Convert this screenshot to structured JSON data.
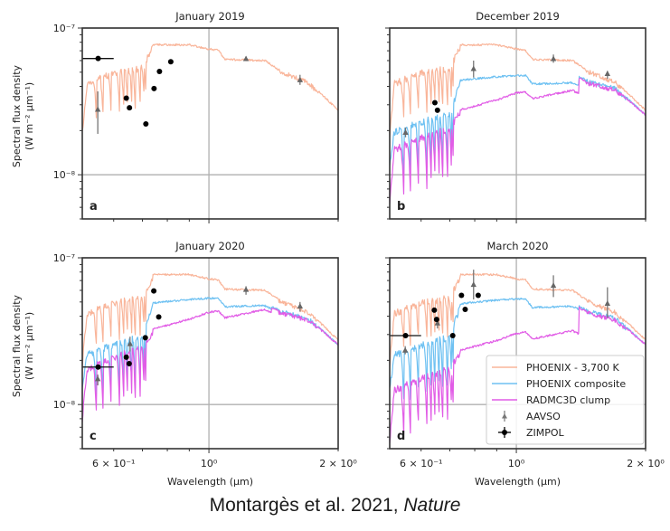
{
  "caption": {
    "text": "Montargès et al. 2021, ",
    "journal": "Nature"
  },
  "chart_data": {
    "type": "line",
    "xscale": "log",
    "yscale": "log",
    "xlim": [
      0.507,
      2.0
    ],
    "ylim": [
      5e-09,
      1e-07
    ],
    "grid": "major",
    "xlabel": "Wavelength (μm)",
    "ylabel_line1": "Spectral flux density",
    "ylabel_line2": "(W m⁻² μm⁻¹)",
    "x_ticks": [
      {
        "value": 0.6,
        "label": "6 × 10⁻¹"
      },
      {
        "value": 1.0,
        "label": "10⁰"
      },
      {
        "value": 2.0,
        "label": "2 × 10⁰"
      }
    ],
    "y_ticks": [
      {
        "value": 1e-07,
        "label": "10⁻⁷"
      },
      {
        "value": 1e-08,
        "label": "10⁻⁸"
      }
    ],
    "legend": {
      "placement": "lower-right (panel d)",
      "entries": [
        {
          "label": "PHOENIX - 3,700 K",
          "kind": "line",
          "color": "#f9b59a"
        },
        {
          "label": "PHOENIX composite",
          "kind": "line",
          "color": "#6ec1f2"
        },
        {
          "label": "RADMC3D clump",
          "kind": "line",
          "color": "#e15ce6"
        },
        {
          "label": "AAVSO",
          "kind": "triangle",
          "color": "#777777"
        },
        {
          "label": "ZIMPOL",
          "kind": "dot",
          "color": "#000000"
        }
      ]
    },
    "model_envelopes": {
      "note": "Smooth continuum anchors (wavelength μm, flux W m^-2 μm^-1); rendered with molecular band absorption features",
      "phoenix_3700K": [
        [
          0.507,
          2e-08
        ],
        [
          0.52,
          4.4e-08
        ],
        [
          0.6,
          5.2e-08
        ],
        [
          0.7,
          5.6e-08
        ],
        [
          0.74,
          7.8e-08
        ],
        [
          0.9,
          7.8e-08
        ],
        [
          1.0,
          7.3e-08
        ],
        [
          1.05,
          7.2e-08
        ],
        [
          1.09,
          6.2e-08
        ],
        [
          1.35,
          6.1e-08
        ],
        [
          1.45,
          5.3e-08
        ],
        [
          1.7,
          4.4e-08
        ],
        [
          2.0,
          2.8e-08
        ]
      ],
      "phoenix_composite": [
        [
          0.507,
          1.4e-08
        ],
        [
          0.52,
          2.4e-08
        ],
        [
          0.6,
          2.8e-08
        ],
        [
          0.7,
          3.2e-08
        ],
        [
          0.74,
          5.2e-08
        ],
        [
          0.9,
          5.5e-08
        ],
        [
          1.0,
          5.6e-08
        ],
        [
          1.05,
          5.6e-08
        ],
        [
          1.09,
          4.9e-08
        ],
        [
          1.35,
          5e-08
        ],
        [
          1.45,
          4.5e-08
        ],
        [
          1.7,
          4e-08
        ],
        [
          2.0,
          2.6e-08
        ]
      ],
      "radmc3d_clump": [
        [
          0.507,
          9e-09
        ],
        [
          0.52,
          2e-08
        ],
        [
          0.6,
          2.4e-08
        ],
        [
          0.7,
          2.8e-08
        ],
        [
          0.74,
          3.6e-08
        ],
        [
          0.9,
          4.2e-08
        ],
        [
          1.0,
          4.7e-08
        ],
        [
          1.05,
          4.8e-08
        ],
        [
          1.09,
          4.3e-08
        ],
        [
          1.35,
          4.9e-08
        ],
        [
          1.45,
          4.4e-08
        ],
        [
          1.7,
          3.9e-08
        ],
        [
          2.0,
          2.6e-08
        ]
      ]
    },
    "panels": [
      {
        "id": "a",
        "title": "January 2019",
        "models": {
          "phoenix_3700K": 1.0
        },
        "zimpol": [
          {
            "x": 0.552,
            "y": 6.2e-08,
            "xerr": [
              0.507,
              0.6
            ]
          },
          {
            "x": 0.642,
            "y": 3.33e-08
          },
          {
            "x": 0.653,
            "y": 2.86e-08
          },
          {
            "x": 0.713,
            "y": 2.22e-08
          },
          {
            "x": 0.745,
            "y": 3.87e-08
          },
          {
            "x": 0.767,
            "y": 5.06e-08
          },
          {
            "x": 0.815,
            "y": 5.89e-08
          }
        ],
        "aavso": [
          {
            "x": 0.551,
            "y": 2.8e-08,
            "yerr": [
              1.9e-08,
              3.7e-08
            ]
          },
          {
            "x": 1.22,
            "y": 6.2e-08,
            "yerr": [
              6e-08,
              6.4e-08
            ]
          },
          {
            "x": 1.63,
            "y": 4.45e-08,
            "yerr": [
              4.1e-08,
              4.8e-08
            ]
          }
        ]
      },
      {
        "id": "b",
        "title": "December 2019",
        "models": {
          "phoenix_3700K": 1.0,
          "phoenix_composite": 0.86,
          "radmc3d_clump": 0.78
        },
        "zimpol": [
          {
            "x": 0.646,
            "y": 3.1e-08
          },
          {
            "x": 0.655,
            "y": 2.75e-08
          }
        ],
        "aavso": [
          {
            "x": 0.552,
            "y": 1.95e-08,
            "yerr": [
              1.8e-08,
              2.1e-08
            ]
          },
          {
            "x": 0.795,
            "y": 5.3e-08,
            "yerr": [
              4.6e-08,
              6e-08
            ]
          },
          {
            "x": 1.22,
            "y": 6.2e-08,
            "yerr": [
              5.8e-08,
              6.6e-08
            ]
          },
          {
            "x": 1.63,
            "y": 4.9e-08,
            "yerr": [
              4.5e-08,
              5.1e-08
            ]
          }
        ]
      },
      {
        "id": "c",
        "title": "January 2020",
        "models": {
          "phoenix_3700K": 1.0,
          "phoenix_composite": 0.96,
          "radmc3d_clump": 0.92
        },
        "zimpol": [
          {
            "x": 0.552,
            "y": 1.8e-08,
            "xerr": [
              0.507,
              0.6
            ]
          },
          {
            "x": 0.642,
            "y": 2.1e-08
          },
          {
            "x": 0.652,
            "y": 1.9e-08
          },
          {
            "x": 0.711,
            "y": 2.85e-08
          },
          {
            "x": 0.744,
            "y": 5.95e-08
          },
          {
            "x": 0.764,
            "y": 3.95e-08
          }
        ],
        "aavso": [
          {
            "x": 0.551,
            "y": 1.5e-08,
            "yerr": [
              1.35e-08,
              1.6e-08
            ]
          },
          {
            "x": 0.655,
            "y": 2.6e-08,
            "yerr": [
              2.3e-08,
              2.9e-08
            ]
          },
          {
            "x": 1.22,
            "y": 6.1e-08,
            "yerr": [
              5.6e-08,
              6.4e-08
            ]
          },
          {
            "x": 1.63,
            "y": 4.7e-08,
            "yerr": [
              4.3e-08,
              5e-08
            ]
          }
        ]
      },
      {
        "id": "d",
        "title": "March 2020",
        "models": {
          "phoenix_3700K": 1.0,
          "phoenix_composite": 0.95,
          "radmc3d_clump": 0.66
        },
        "zimpol": [
          {
            "x": 0.552,
            "y": 2.95e-08,
            "xerr": [
              0.507,
              0.6
            ]
          },
          {
            "x": 0.644,
            "y": 4.4e-08
          },
          {
            "x": 0.652,
            "y": 3.8e-08
          },
          {
            "x": 0.711,
            "y": 2.95e-08
          },
          {
            "x": 0.745,
            "y": 5.55e-08
          },
          {
            "x": 0.76,
            "y": 4.45e-08
          },
          {
            "x": 0.815,
            "y": 5.55e-08
          }
        ],
        "aavso": [
          {
            "x": 0.551,
            "y": 2.35e-08,
            "yerr": [
              2.2e-08,
              2.5e-08
            ]
          },
          {
            "x": 0.655,
            "y": 3.6e-08,
            "yerr": [
              3.3e-08,
              3.9e-08
            ]
          },
          {
            "x": 0.795,
            "y": 6.6e-08,
            "yerr": [
              5.2e-08,
              8.3e-08
            ]
          },
          {
            "x": 1.22,
            "y": 6.5e-08,
            "yerr": [
              5.4e-08,
              7.6e-08
            ]
          },
          {
            "x": 1.63,
            "y": 4.9e-08,
            "yerr": [
              3.9e-08,
              6.3e-08
            ]
          }
        ]
      }
    ]
  }
}
